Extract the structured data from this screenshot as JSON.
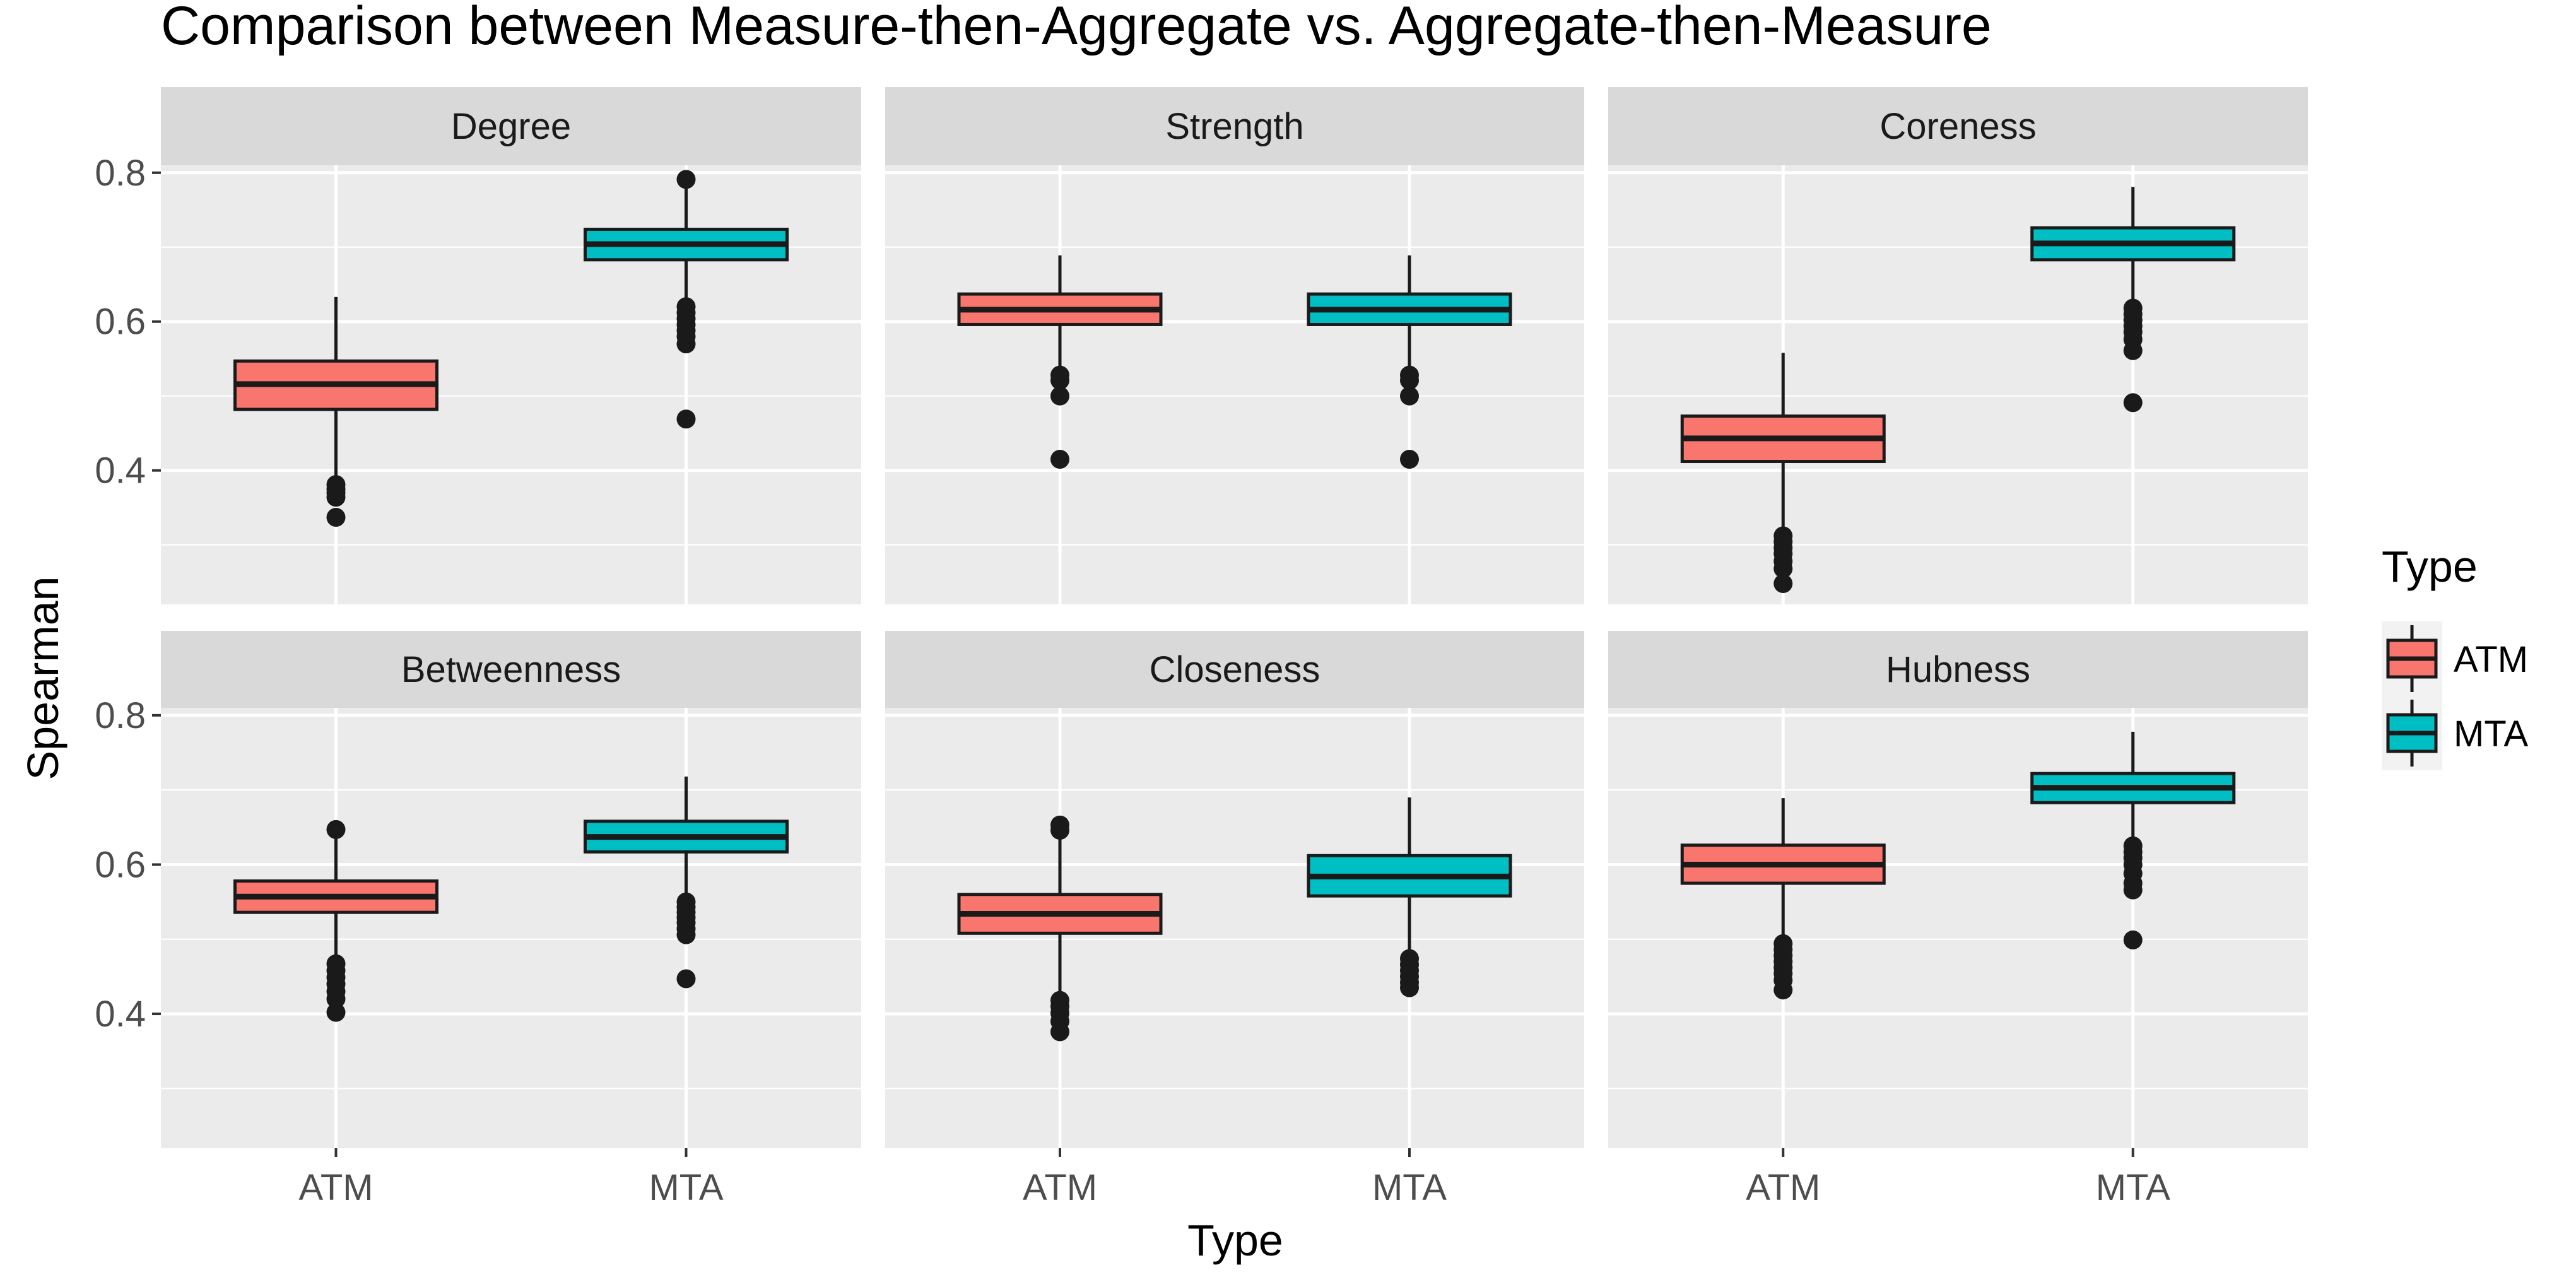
{
  "chart_data": {
    "type": "boxplot",
    "title": "Comparison between Measure-then-Aggregate vs. Aggregate-then-Measure",
    "xlabel": "Type",
    "ylabel": "Spearman",
    "ylim": [
      0.22,
      0.81
    ],
    "y_ticks": [
      0.4,
      0.6,
      0.8
    ],
    "y_tick_labels": [
      "0.4",
      "0.6",
      "0.8"
    ],
    "categories": [
      "ATM",
      "MTA"
    ],
    "legend": {
      "title": "Type",
      "position": "right",
      "items": [
        {
          "label": "ATM",
          "color": "#F8766D"
        },
        {
          "label": "MTA",
          "color": "#00BFC4"
        }
      ]
    },
    "colors": {
      "ATM": "#F8766D",
      "MTA": "#00BFC4"
    },
    "panels": [
      {
        "name": "Degree",
        "boxes": [
          {
            "type": "ATM",
            "whisker_low": 0.39,
            "q1": 0.482,
            "median": 0.516,
            "q3": 0.547,
            "whisker_high": 0.633,
            "outliers": [
              0.381,
              0.375,
              0.37,
              0.364,
              0.337
            ]
          },
          {
            "type": "MTA",
            "whisker_low": 0.623,
            "q1": 0.683,
            "median": 0.704,
            "q3": 0.724,
            "whisker_high": 0.79,
            "outliers": [
              0.791,
              0.62,
              0.612,
              0.604,
              0.596,
              0.588,
              0.58,
              0.57,
              0.469
            ]
          }
        ]
      },
      {
        "name": "Strength",
        "boxes": [
          {
            "type": "ATM",
            "whisker_low": 0.535,
            "q1": 0.596,
            "median": 0.616,
            "q3": 0.637,
            "whisker_high": 0.689,
            "outliers": [
              0.528,
              0.521,
              0.5,
              0.415
            ]
          },
          {
            "type": "MTA",
            "whisker_low": 0.535,
            "q1": 0.596,
            "median": 0.616,
            "q3": 0.637,
            "whisker_high": 0.689,
            "outliers": [
              0.528,
              0.521,
              0.5,
              0.415
            ]
          }
        ]
      },
      {
        "name": "Coreness",
        "boxes": [
          {
            "type": "ATM",
            "whisker_low": 0.318,
            "q1": 0.412,
            "median": 0.443,
            "q3": 0.473,
            "whisker_high": 0.558,
            "outliers": [
              0.312,
              0.304,
              0.296,
              0.288,
              0.278,
              0.268,
              0.248
            ]
          },
          {
            "type": "MTA",
            "whisker_low": 0.625,
            "q1": 0.683,
            "median": 0.705,
            "q3": 0.726,
            "whisker_high": 0.781,
            "outliers": [
              0.618,
              0.61,
              0.602,
              0.594,
              0.586,
              0.576,
              0.561,
              0.491
            ]
          }
        ]
      },
      {
        "name": "Betweenness",
        "boxes": [
          {
            "type": "ATM",
            "whisker_low": 0.475,
            "q1": 0.536,
            "median": 0.557,
            "q3": 0.578,
            "whisker_high": 0.64,
            "outliers": [
              0.647,
              0.467,
              0.458,
              0.449,
              0.44,
              0.43,
              0.42,
              0.402
            ]
          },
          {
            "type": "MTA",
            "whisker_low": 0.56,
            "q1": 0.617,
            "median": 0.637,
            "q3": 0.658,
            "whisker_high": 0.718,
            "outliers": [
              0.55,
              0.543,
              0.536,
              0.529,
              0.522,
              0.514,
              0.506,
              0.447
            ]
          }
        ]
      },
      {
        "name": "Closeness",
        "boxes": [
          {
            "type": "ATM",
            "whisker_low": 0.425,
            "q1": 0.508,
            "median": 0.534,
            "q3": 0.56,
            "whisker_high": 0.645,
            "outliers": [
              0.653,
              0.646,
              0.418,
              0.41,
              0.401,
              0.39,
              0.376
            ]
          },
          {
            "type": "MTA",
            "whisker_low": 0.478,
            "q1": 0.558,
            "median": 0.584,
            "q3": 0.612,
            "whisker_high": 0.69,
            "outliers": [
              0.474,
              0.466,
              0.458,
              0.45,
              0.442,
              0.435
            ]
          }
        ]
      },
      {
        "name": "Hubness",
        "boxes": [
          {
            "type": "ATM",
            "whisker_low": 0.5,
            "q1": 0.575,
            "median": 0.6,
            "q3": 0.626,
            "whisker_high": 0.689,
            "outliers": [
              0.494,
              0.486,
              0.478,
              0.47,
              0.462,
              0.454,
              0.445,
              0.432
            ]
          },
          {
            "type": "MTA",
            "whisker_low": 0.63,
            "q1": 0.683,
            "median": 0.703,
            "q3": 0.722,
            "whisker_high": 0.778,
            "outliers": [
              0.625,
              0.617,
              0.609,
              0.6,
              0.588,
              0.575,
              0.566,
              0.499
            ]
          }
        ]
      }
    ]
  }
}
